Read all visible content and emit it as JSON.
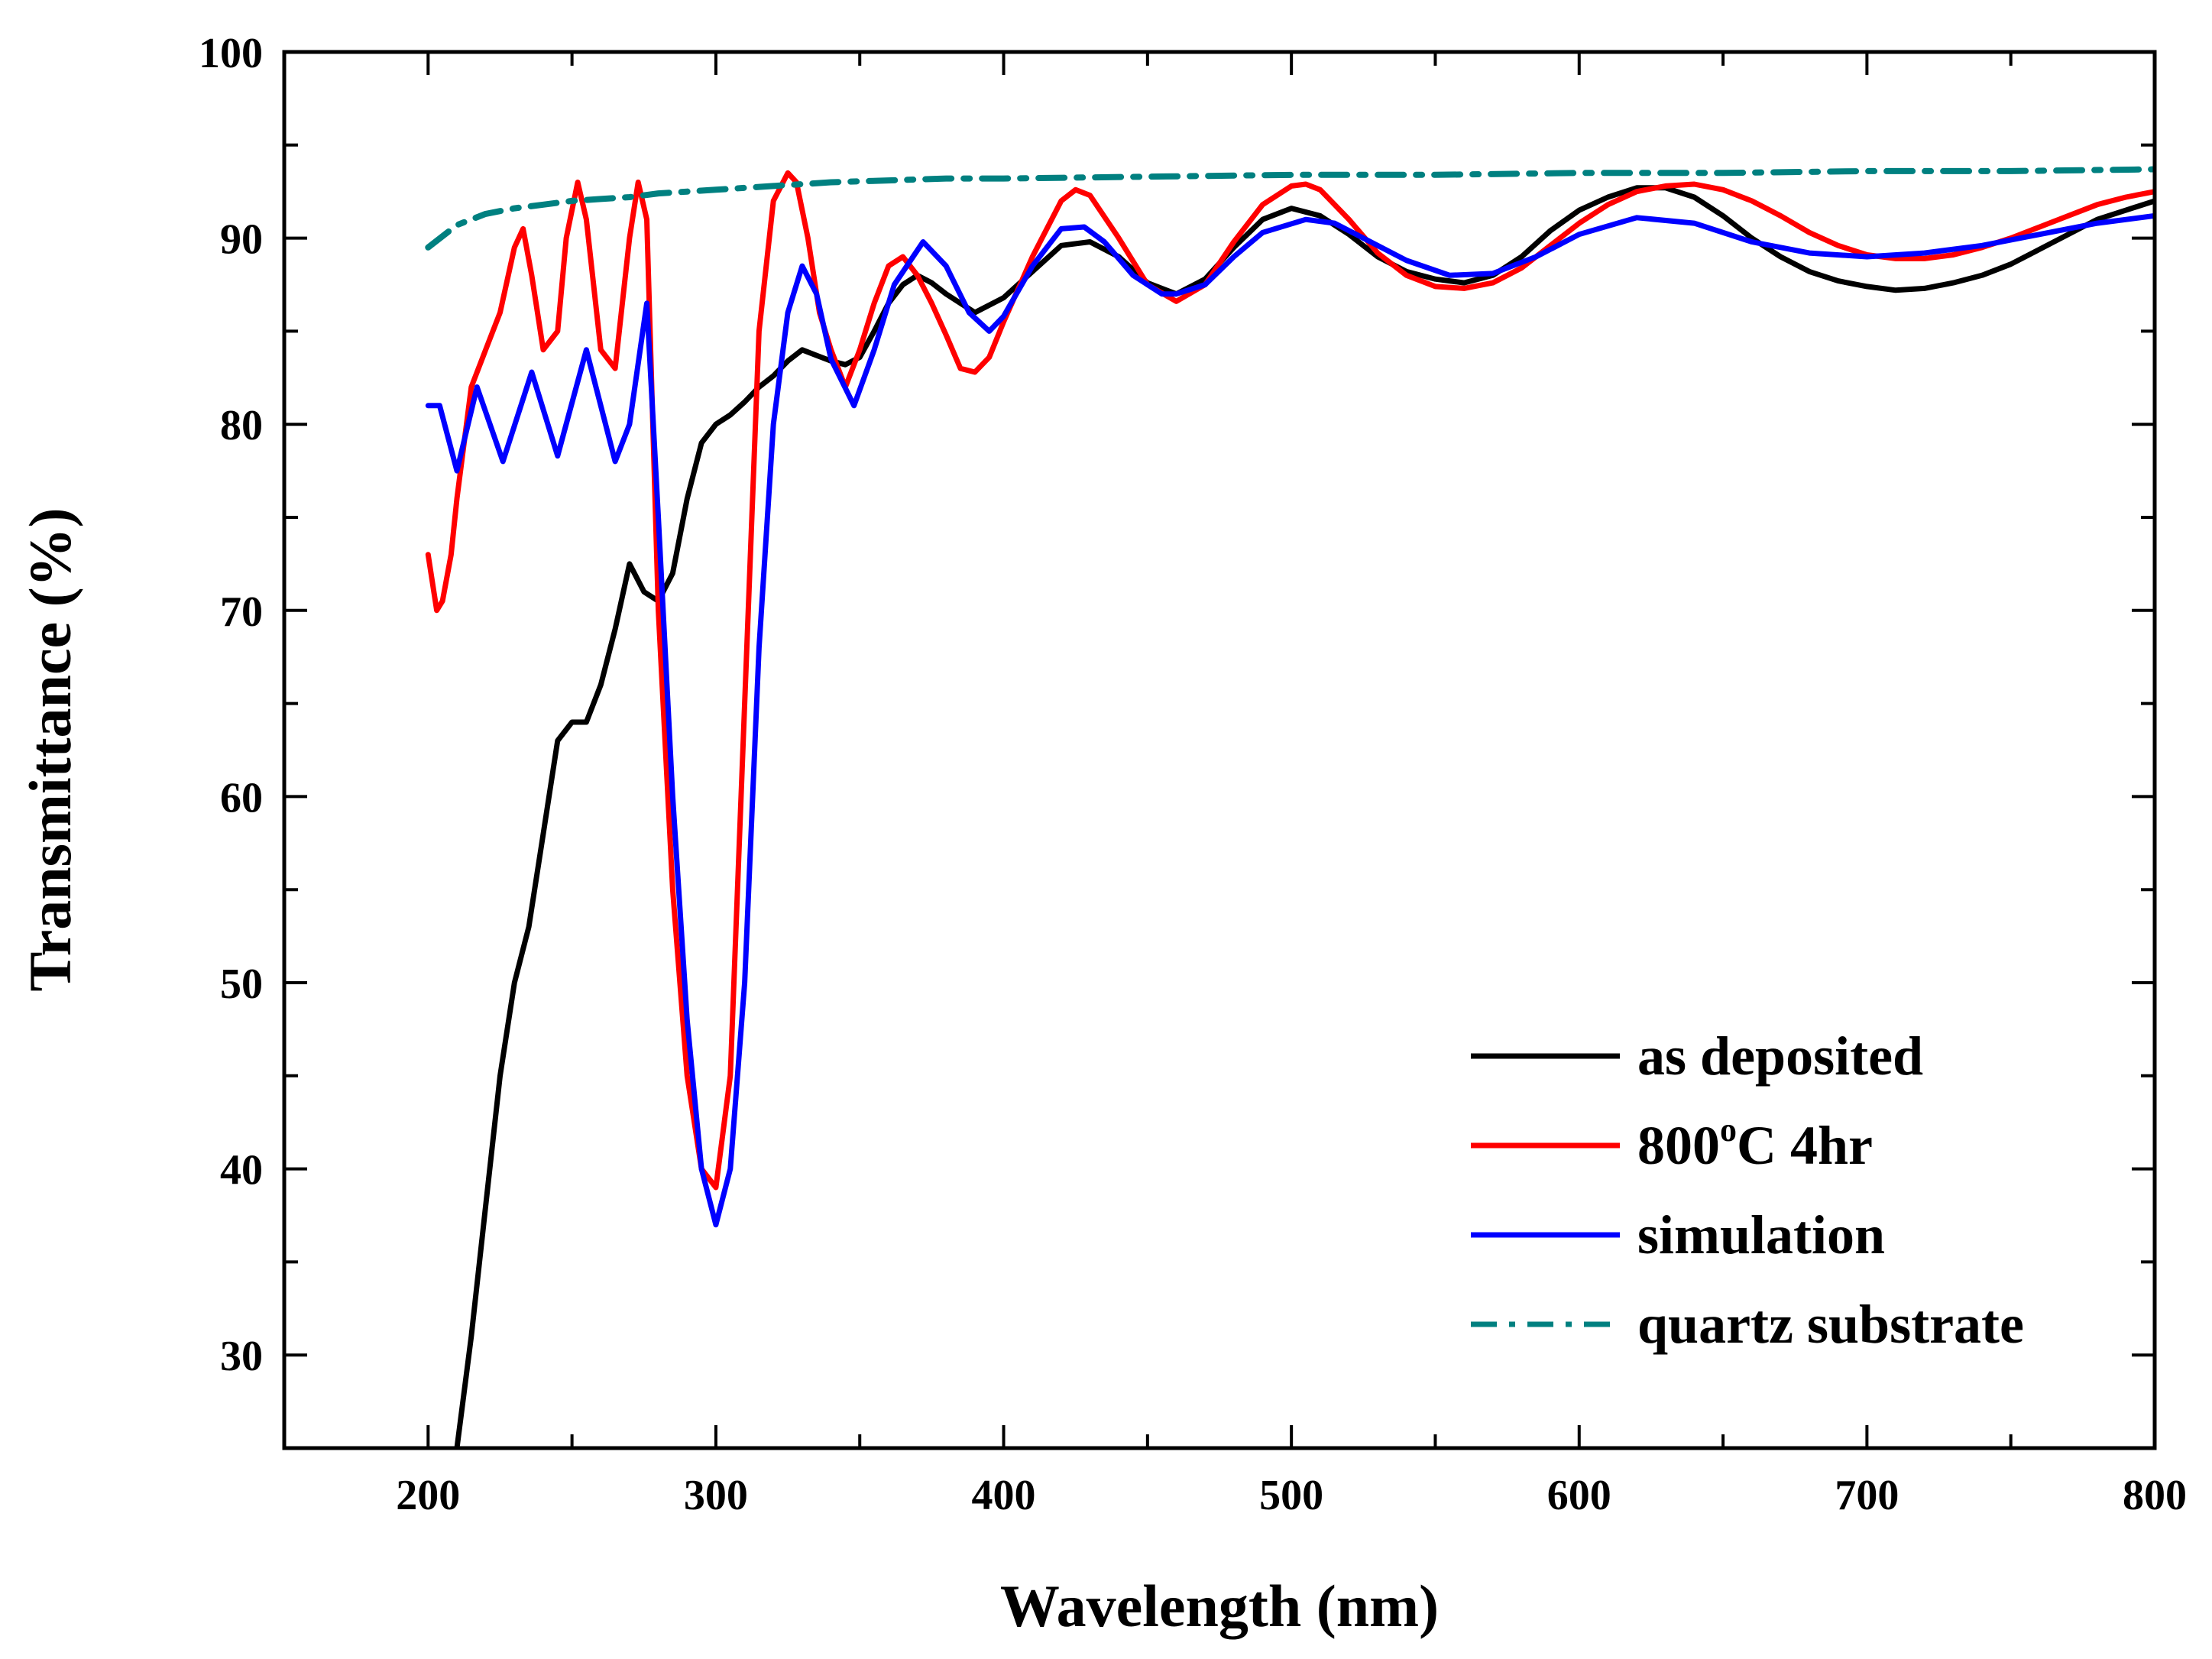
{
  "chart_data": {
    "type": "line",
    "title": "",
    "xlabel": "Wavelength (nm)",
    "ylabel": "Transmittance (%)",
    "xlim": [
      150,
      800
    ],
    "ylim": [
      25,
      100
    ],
    "x_ticks": [
      200,
      300,
      400,
      500,
      600,
      700,
      800
    ],
    "x_tick_labels": [
      "200",
      "300",
      "400",
      "500",
      "600",
      "700",
      "800"
    ],
    "y_ticks": [
      30,
      40,
      50,
      60,
      70,
      80,
      90,
      100
    ],
    "y_tick_labels": [
      "30",
      "40",
      "50",
      "60",
      "70",
      "80",
      "90",
      "100"
    ],
    "grid": false,
    "legend_position": "bottom-right",
    "series": [
      {
        "name": "as deposited",
        "color": "#000000",
        "style": "solid",
        "x": [
          210,
          215,
          220,
          225,
          230,
          235,
          240,
          245,
          250,
          255,
          260,
          265,
          270,
          275,
          280,
          285,
          290,
          295,
          300,
          305,
          310,
          315,
          320,
          325,
          330,
          335,
          340,
          345,
          350,
          355,
          360,
          365,
          370,
          375,
          380,
          390,
          400,
          410,
          420,
          430,
          440,
          450,
          460,
          470,
          480,
          490,
          500,
          510,
          520,
          530,
          540,
          550,
          560,
          570,
          580,
          590,
          600,
          610,
          620,
          630,
          640,
          650,
          660,
          670,
          680,
          690,
          700,
          710,
          720,
          730,
          740,
          750,
          760,
          770,
          780,
          790,
          800
        ],
        "y": [
          25,
          31,
          38,
          45,
          50,
          53,
          58,
          63,
          64,
          64,
          66,
          69,
          72.5,
          71,
          70.5,
          72,
          76,
          79,
          80,
          80.5,
          81.2,
          82,
          82.6,
          83.4,
          84,
          83.7,
          83.4,
          83.2,
          83.6,
          85,
          86.5,
          87.5,
          88,
          87.6,
          87,
          86,
          86.8,
          88.2,
          89.6,
          89.8,
          89,
          87.6,
          87,
          87.8,
          89.5,
          91,
          91.6,
          91.2,
          90.2,
          89,
          88.2,
          87.8,
          87.6,
          88,
          89,
          90.4,
          91.5,
          92.2,
          92.7,
          92.7,
          92.2,
          91.2,
          90,
          89,
          88.2,
          87.7,
          87.4,
          87.2,
          87.3,
          87.6,
          88,
          88.6,
          89.4,
          90.2,
          91,
          91.5,
          92
        ]
      },
      {
        "name": "800°C 4hr",
        "color": "#ff0000",
        "style": "solid",
        "x": [
          200,
          203,
          205,
          208,
          210,
          215,
          220,
          225,
          230,
          233,
          236,
          240,
          245,
          248,
          252,
          255,
          260,
          265,
          270,
          273,
          276,
          280,
          285,
          290,
          295,
          300,
          305,
          310,
          315,
          320,
          325,
          328,
          332,
          336,
          340,
          345,
          350,
          355,
          360,
          365,
          370,
          375,
          380,
          385,
          390,
          395,
          400,
          410,
          420,
          425,
          430,
          440,
          450,
          460,
          470,
          480,
          490,
          500,
          505,
          510,
          520,
          530,
          540,
          550,
          560,
          570,
          580,
          590,
          600,
          610,
          620,
          630,
          640,
          650,
          660,
          670,
          680,
          690,
          700,
          710,
          720,
          730,
          740,
          750,
          760,
          770,
          780,
          790,
          800
        ],
        "y": [
          73,
          70,
          70.5,
          73,
          76,
          82,
          84,
          86,
          89.5,
          90.5,
          88,
          84,
          85,
          90,
          93,
          91,
          84,
          83,
          90,
          93,
          91,
          70,
          55,
          45,
          40,
          39,
          45,
          65,
          85,
          92,
          93.5,
          93,
          90,
          86,
          84,
          82,
          84,
          86.5,
          88.5,
          89,
          88,
          86.5,
          84.8,
          83,
          82.8,
          83.6,
          85.5,
          89,
          92,
          92.6,
          92.3,
          90,
          87.5,
          86.6,
          87.5,
          89.8,
          91.8,
          92.8,
          92.9,
          92.6,
          91,
          89.2,
          88,
          87.4,
          87.3,
          87.6,
          88.4,
          89.6,
          90.8,
          91.8,
          92.5,
          92.8,
          92.9,
          92.6,
          92,
          91.2,
          90.3,
          89.6,
          89.1,
          88.9,
          88.9,
          89.1,
          89.5,
          90,
          90.6,
          91.2,
          91.8,
          92.2,
          92.5
        ]
      },
      {
        "name": "simulation",
        "color": "#0000ff",
        "style": "solid",
        "x": [
          200,
          204,
          210,
          217,
          226,
          236,
          245,
          255,
          265,
          270,
          276,
          280,
          285,
          290,
          295,
          300,
          305,
          310,
          315,
          320,
          325,
          330,
          335,
          340,
          348,
          355,
          362,
          372,
          380,
          388,
          395,
          400,
          410,
          420,
          428,
          435,
          445,
          455,
          460,
          470,
          480,
          490,
          505,
          515,
          525,
          540,
          555,
          570,
          585,
          600,
          620,
          640,
          660,
          680,
          700,
          720,
          740,
          760,
          780,
          800
        ],
        "y": [
          81,
          81,
          77.5,
          82,
          78,
          82.8,
          78.3,
          84,
          78,
          80,
          86.5,
          75,
          60,
          48,
          40,
          37,
          40,
          50,
          68,
          80,
          86,
          88.5,
          87,
          83.5,
          81,
          84,
          87.5,
          89.8,
          88.5,
          86,
          85,
          85.8,
          88.5,
          90.5,
          90.6,
          89.8,
          88,
          87,
          87,
          87.5,
          89,
          90.3,
          91,
          90.8,
          90,
          88.8,
          88,
          88.1,
          89,
          90.2,
          91.1,
          90.8,
          89.8,
          89.2,
          89,
          89.2,
          89.6,
          90.2,
          90.8,
          91.2
        ]
      },
      {
        "name": "quartz substrate",
        "color": "#008080",
        "style": "dashdot",
        "x": [
          200,
          210,
          220,
          230,
          240,
          250,
          260,
          270,
          280,
          290,
          300,
          320,
          340,
          360,
          380,
          400,
          450,
          500,
          550,
          600,
          650,
          700,
          750,
          800
        ],
        "y": [
          89.5,
          90.7,
          91.3,
          91.6,
          91.8,
          92,
          92.1,
          92.2,
          92.4,
          92.5,
          92.6,
          92.8,
          93,
          93.1,
          93.2,
          93.2,
          93.3,
          93.4,
          93.4,
          93.5,
          93.5,
          93.6,
          93.6,
          93.7
        ]
      }
    ]
  }
}
